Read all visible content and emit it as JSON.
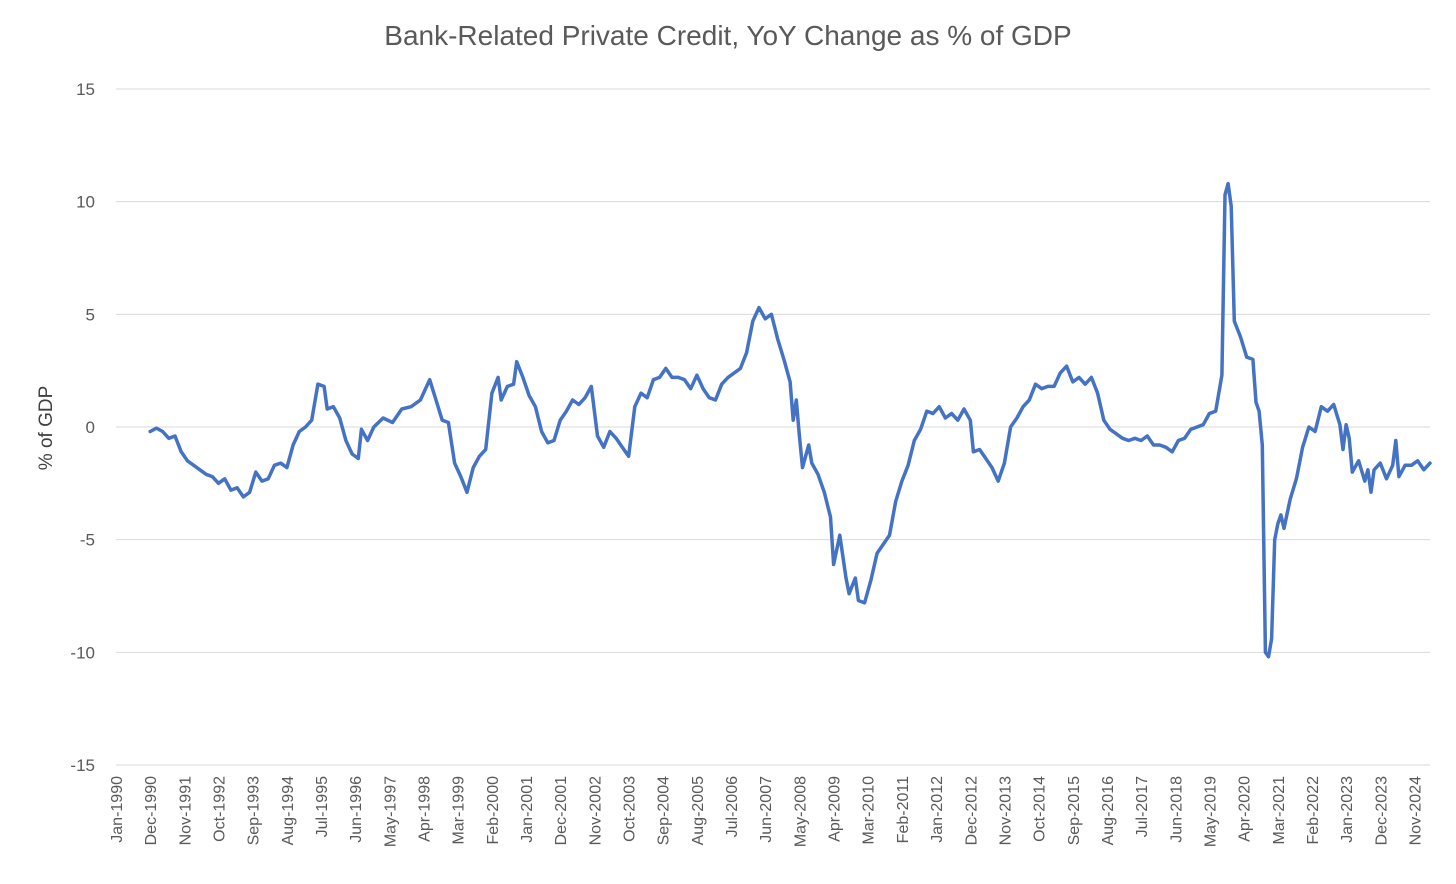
{
  "chart_data": {
    "type": "line",
    "title": "Bank-Related Private Credit, YoY Change as % of GDP",
    "xlabel": "",
    "ylabel": "% of GDP",
    "ylim": [
      -15,
      15
    ],
    "yticks": [
      15,
      10,
      5,
      0,
      -5,
      -10,
      -15
    ],
    "ytick_labels": [
      "15",
      "10",
      "5",
      "0",
      "-5",
      "-10",
      "-15"
    ],
    "grid": true,
    "x_start": "Jan-1990",
    "x_end": "Apr-2025",
    "x_tick_labels": [
      "Jan-1990",
      "Dec-1990",
      "Nov-1991",
      "Oct-1992",
      "Sep-1993",
      "Aug-1994",
      "Jul-1995",
      "Jun-1996",
      "May-1997",
      "Apr-1998",
      "Mar-1999",
      "Feb-2000",
      "Jan-2001",
      "Dec-2001",
      "Nov-2002",
      "Oct-2003",
      "Sep-2004",
      "Aug-2005",
      "Jul-2006",
      "Jun-2007",
      "May-2008",
      "Apr-2009",
      "Mar-2010",
      "Feb-2011",
      "Jan-2012",
      "Dec-2012",
      "Nov-2013",
      "Oct-2014",
      "Sep-2015",
      "Aug-2016",
      "Jul-2017",
      "Jun-2018",
      "May-2019",
      "Apr-2020",
      "Mar-2021",
      "Feb-2022",
      "Jan-2023",
      "Dec-2023",
      "Nov-2024"
    ],
    "series": [
      {
        "name": "Bank-Related Private Credit YoY % of GDP",
        "color": "#4472C4",
        "points": [
          [
            "Dec-1990",
            -0.2
          ],
          [
            "Feb-1991",
            -0.05
          ],
          [
            "Apr-1991",
            -0.2
          ],
          [
            "Jun-1991",
            -0.5
          ],
          [
            "Aug-1991",
            -0.4
          ],
          [
            "Oct-1991",
            -1.1
          ],
          [
            "Dec-1991",
            -1.5
          ],
          [
            "Feb-1992",
            -1.7
          ],
          [
            "Apr-1992",
            -1.9
          ],
          [
            "Jun-1992",
            -2.1
          ],
          [
            "Aug-1992",
            -2.2
          ],
          [
            "Oct-1992",
            -2.5
          ],
          [
            "Dec-1992",
            -2.3
          ],
          [
            "Feb-1993",
            -2.8
          ],
          [
            "Apr-1993",
            -2.7
          ],
          [
            "Jun-1993",
            -3.1
          ],
          [
            "Aug-1993",
            -2.9
          ],
          [
            "Oct-1993",
            -2.0
          ],
          [
            "Dec-1993",
            -2.4
          ],
          [
            "Feb-1994",
            -2.3
          ],
          [
            "Apr-1994",
            -1.7
          ],
          [
            "Jun-1994",
            -1.6
          ],
          [
            "Aug-1994",
            -1.8
          ],
          [
            "Oct-1994",
            -0.8
          ],
          [
            "Dec-1994",
            -0.2
          ],
          [
            "Feb-1995",
            0.0
          ],
          [
            "Apr-1995",
            0.3
          ],
          [
            "Jun-1995",
            1.9
          ],
          [
            "Aug-1995",
            1.8
          ],
          [
            "Sep-1995",
            0.8
          ],
          [
            "Nov-1995",
            0.9
          ],
          [
            "Jan-1996",
            0.4
          ],
          [
            "Mar-1996",
            -0.6
          ],
          [
            "May-1996",
            -1.2
          ],
          [
            "Jul-1996",
            -1.4
          ],
          [
            "Aug-1996",
            -0.1
          ],
          [
            "Oct-1996",
            -0.6
          ],
          [
            "Dec-1996",
            0.0
          ],
          [
            "Mar-1997",
            0.4
          ],
          [
            "Jun-1997",
            0.2
          ],
          [
            "Sep-1997",
            0.8
          ],
          [
            "Dec-1997",
            0.9
          ],
          [
            "Mar-1998",
            1.2
          ],
          [
            "Jun-1998",
            2.1
          ],
          [
            "Aug-1998",
            1.2
          ],
          [
            "Oct-1998",
            0.3
          ],
          [
            "Dec-1998",
            0.2
          ],
          [
            "Feb-1999",
            -1.6
          ],
          [
            "Apr-1999",
            -2.2
          ],
          [
            "Jun-1999",
            -2.9
          ],
          [
            "Aug-1999",
            -1.8
          ],
          [
            "Oct-1999",
            -1.3
          ],
          [
            "Dec-1999",
            -1.0
          ],
          [
            "Feb-2000",
            1.5
          ],
          [
            "Apr-2000",
            2.2
          ],
          [
            "May-2000",
            1.2
          ],
          [
            "Jul-2000",
            1.8
          ],
          [
            "Sep-2000",
            1.9
          ],
          [
            "Oct-2000",
            2.9
          ],
          [
            "Dec-2000",
            2.2
          ],
          [
            "Feb-2001",
            1.4
          ],
          [
            "Apr-2001",
            0.9
          ],
          [
            "Jun-2001",
            -0.2
          ],
          [
            "Aug-2001",
            -0.7
          ],
          [
            "Oct-2001",
            -0.6
          ],
          [
            "Dec-2001",
            0.3
          ],
          [
            "Feb-2002",
            0.7
          ],
          [
            "Apr-2002",
            1.2
          ],
          [
            "Jun-2002",
            1.0
          ],
          [
            "Aug-2002",
            1.3
          ],
          [
            "Oct-2002",
            1.8
          ],
          [
            "Dec-2002",
            -0.4
          ],
          [
            "Feb-2003",
            -0.9
          ],
          [
            "Apr-2003",
            -0.2
          ],
          [
            "Jun-2003",
            -0.5
          ],
          [
            "Aug-2003",
            -0.9
          ],
          [
            "Oct-2003",
            -1.3
          ],
          [
            "Dec-2003",
            0.9
          ],
          [
            "Feb-2004",
            1.5
          ],
          [
            "Apr-2004",
            1.3
          ],
          [
            "Jun-2004",
            2.1
          ],
          [
            "Aug-2004",
            2.2
          ],
          [
            "Oct-2004",
            2.6
          ],
          [
            "Dec-2004",
            2.2
          ],
          [
            "Feb-2005",
            2.2
          ],
          [
            "Apr-2005",
            2.1
          ],
          [
            "Jun-2005",
            1.7
          ],
          [
            "Aug-2005",
            2.3
          ],
          [
            "Oct-2005",
            1.7
          ],
          [
            "Dec-2005",
            1.3
          ],
          [
            "Feb-2006",
            1.2
          ],
          [
            "Apr-2006",
            1.9
          ],
          [
            "Jun-2006",
            2.2
          ],
          [
            "Aug-2006",
            2.4
          ],
          [
            "Oct-2006",
            2.6
          ],
          [
            "Dec-2006",
            3.3
          ],
          [
            "Feb-2007",
            4.7
          ],
          [
            "Apr-2007",
            5.3
          ],
          [
            "Jun-2007",
            4.8
          ],
          [
            "Aug-2007",
            5.0
          ],
          [
            "Oct-2007",
            3.9
          ],
          [
            "Dec-2007",
            3.0
          ],
          [
            "Feb-2008",
            2.0
          ],
          [
            "Mar-2008",
            0.3
          ],
          [
            "Apr-2008",
            1.2
          ],
          [
            "May-2008",
            -0.4
          ],
          [
            "Jun-2008",
            -1.8
          ],
          [
            "Aug-2008",
            -0.8
          ],
          [
            "Sep-2008",
            -1.6
          ],
          [
            "Nov-2008",
            -2.1
          ],
          [
            "Jan-2009",
            -2.9
          ],
          [
            "Mar-2009",
            -4.0
          ],
          [
            "Apr-2009",
            -6.1
          ],
          [
            "Jun-2009",
            -4.8
          ],
          [
            "Aug-2009",
            -6.7
          ],
          [
            "Sep-2009",
            -7.4
          ],
          [
            "Nov-2009",
            -6.7
          ],
          [
            "Dec-2009",
            -7.7
          ],
          [
            "Feb-2010",
            -7.8
          ],
          [
            "Apr-2010",
            -6.8
          ],
          [
            "Jun-2010",
            -5.6
          ],
          [
            "Aug-2010",
            -5.2
          ],
          [
            "Oct-2010",
            -4.8
          ],
          [
            "Dec-2010",
            -3.3
          ],
          [
            "Feb-2011",
            -2.4
          ],
          [
            "Apr-2011",
            -1.7
          ],
          [
            "Jun-2011",
            -0.6
          ],
          [
            "Aug-2011",
            -0.1
          ],
          [
            "Oct-2011",
            0.7
          ],
          [
            "Dec-2011",
            0.6
          ],
          [
            "Feb-2012",
            0.9
          ],
          [
            "Apr-2012",
            0.4
          ],
          [
            "Jun-2012",
            0.6
          ],
          [
            "Aug-2012",
            0.3
          ],
          [
            "Oct-2012",
            0.8
          ],
          [
            "Dec-2012",
            0.3
          ],
          [
            "Jan-2013",
            -1.1
          ],
          [
            "Mar-2013",
            -1.0
          ],
          [
            "May-2013",
            -1.4
          ],
          [
            "Jul-2013",
            -1.8
          ],
          [
            "Sep-2013",
            -2.4
          ],
          [
            "Nov-2013",
            -1.6
          ],
          [
            "Jan-2014",
            0.0
          ],
          [
            "Mar-2014",
            0.4
          ],
          [
            "May-2014",
            0.9
          ],
          [
            "Jul-2014",
            1.2
          ],
          [
            "Sep-2014",
            1.9
          ],
          [
            "Nov-2014",
            1.7
          ],
          [
            "Jan-2015",
            1.8
          ],
          [
            "Mar-2015",
            1.8
          ],
          [
            "May-2015",
            2.4
          ],
          [
            "Jul-2015",
            2.7
          ],
          [
            "Sep-2015",
            2.0
          ],
          [
            "Nov-2015",
            2.2
          ],
          [
            "Jan-2016",
            1.9
          ],
          [
            "Mar-2016",
            2.2
          ],
          [
            "May-2016",
            1.5
          ],
          [
            "Jul-2016",
            0.3
          ],
          [
            "Sep-2016",
            -0.1
          ],
          [
            "Nov-2016",
            -0.3
          ],
          [
            "Jan-2017",
            -0.5
          ],
          [
            "Mar-2017",
            -0.6
          ],
          [
            "May-2017",
            -0.5
          ],
          [
            "Jul-2017",
            -0.6
          ],
          [
            "Sep-2017",
            -0.4
          ],
          [
            "Nov-2017",
            -0.8
          ],
          [
            "Jan-2018",
            -0.8
          ],
          [
            "Mar-2018",
            -0.9
          ],
          [
            "May-2018",
            -1.1
          ],
          [
            "Jul-2018",
            -0.6
          ],
          [
            "Sep-2018",
            -0.5
          ],
          [
            "Nov-2018",
            -0.1
          ],
          [
            "Jan-2019",
            0.0
          ],
          [
            "Mar-2019",
            0.1
          ],
          [
            "May-2019",
            0.6
          ],
          [
            "Jul-2019",
            0.7
          ],
          [
            "Sep-2019",
            2.3
          ],
          [
            "Oct-2019",
            10.3
          ],
          [
            "Nov-2019",
            10.8
          ],
          [
            "Dec-2019",
            9.8
          ],
          [
            "Jan-2020",
            4.7
          ],
          [
            "Mar-2020",
            4.0
          ],
          [
            "May-2020",
            3.1
          ],
          [
            "Jul-2020",
            3.0
          ],
          [
            "Aug-2020",
            1.1
          ],
          [
            "Sep-2020",
            0.7
          ],
          [
            "Oct-2020",
            -0.8
          ],
          [
            "Nov-2020",
            -10.0
          ],
          [
            "Dec-2020",
            -10.2
          ],
          [
            "Jan-2021",
            -9.4
          ],
          [
            "Feb-2021",
            -5.0
          ],
          [
            "Mar-2021",
            -4.3
          ],
          [
            "Apr-2021",
            -3.9
          ],
          [
            "May-2021",
            -4.5
          ],
          [
            "Jul-2021",
            -3.2
          ],
          [
            "Sep-2021",
            -2.3
          ],
          [
            "Nov-2021",
            -0.9
          ],
          [
            "Jan-2022",
            0.0
          ],
          [
            "Mar-2022",
            -0.2
          ],
          [
            "May-2022",
            0.9
          ],
          [
            "Jul-2022",
            0.7
          ],
          [
            "Sep-2022",
            1.0
          ],
          [
            "Nov-2022",
            0.1
          ],
          [
            "Dec-2022",
            -1.0
          ],
          [
            "Jan-2023",
            0.1
          ],
          [
            "Feb-2023",
            -0.5
          ],
          [
            "Mar-2023",
            -2.0
          ],
          [
            "May-2023",
            -1.5
          ],
          [
            "Jul-2023",
            -2.4
          ],
          [
            "Aug-2023",
            -1.9
          ],
          [
            "Sep-2023",
            -2.9
          ],
          [
            "Oct-2023",
            -1.9
          ],
          [
            "Dec-2023",
            -1.6
          ],
          [
            "Feb-2024",
            -2.3
          ],
          [
            "Apr-2024",
            -1.7
          ],
          [
            "May-2024",
            -0.6
          ],
          [
            "Jun-2024",
            -2.2
          ],
          [
            "Aug-2024",
            -1.7
          ],
          [
            "Oct-2024",
            -1.7
          ],
          [
            "Dec-2024",
            -1.5
          ],
          [
            "Feb-2025",
            -1.9
          ],
          [
            "Apr-2025",
            -1.6
          ]
        ]
      }
    ]
  }
}
